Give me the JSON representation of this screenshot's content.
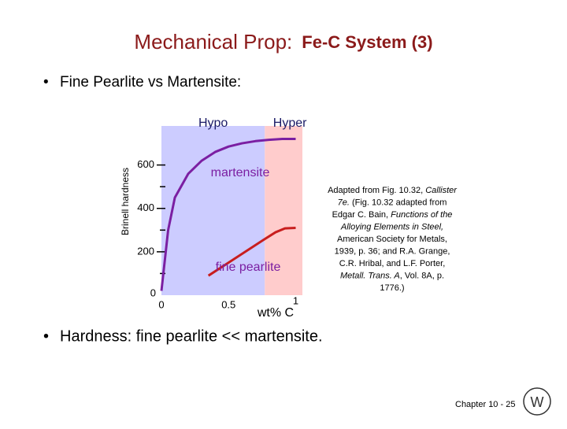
{
  "slide": {
    "title": {
      "main": "Mechanical Prop:",
      "sub": "Fe-C System (3)"
    },
    "bullets": [
      "Fine Pearlite vs Martensite:",
      "Hardness:  fine pearlite << martensite."
    ],
    "citation": [
      [
        {
          "text": "Adapted from Fig. 10.32, "
        },
        {
          "text": "Callister",
          "italic": true
        }
      ],
      [
        {
          "text": "7e.",
          "italic": true
        },
        {
          "text": "  (Fig. 10.32 adapted from"
        }
      ],
      [
        {
          "text": "Edgar C. Bain, "
        },
        {
          "text": "Functions of the",
          "italic": true
        }
      ],
      [
        {
          "text": "Alloying Elements in Steel,",
          "italic": true
        }
      ],
      [
        {
          "text": "American Society for Metals,"
        }
      ],
      [
        {
          "text": "1939, p. 36; and R.A. Grange,"
        }
      ],
      [
        {
          "text": "C.R. Hribal, and L.F. Porter,"
        }
      ],
      [
        {
          "text": "Metall. Trans. A",
          "italic": true
        },
        {
          "text": ", Vol. 8A, p."
        }
      ],
      [
        {
          "text": "1776.)"
        }
      ]
    ],
    "footer": "Chapter 10 - 25"
  },
  "chart_data": {
    "type": "line",
    "y_label": "Brinell hardness",
    "x_label": "wt% C",
    "xlim": [
      0,
      1.05
    ],
    "ylim": [
      0,
      780
    ],
    "xticks": [
      0,
      0.5,
      1
    ],
    "yticks": [
      0,
      200,
      400,
      600
    ],
    "minor_yticks": [
      100,
      300,
      500
    ],
    "regions": [
      {
        "name": "Hypo",
        "xlim": [
          0,
          0.77
        ],
        "color": "#ccccff"
      },
      {
        "name": "Hyper",
        "xlim": [
          0.77,
          1.05
        ],
        "color": "#ffcccc"
      }
    ],
    "series": [
      {
        "name": "martensite",
        "color": "#7b1fa2",
        "x": [
          0,
          0.05,
          0.1,
          0.2,
          0.3,
          0.4,
          0.5,
          0.6,
          0.7,
          0.8,
          0.9,
          1.0
        ],
        "values": [
          20,
          300,
          450,
          560,
          620,
          660,
          685,
          700,
          710,
          716,
          720,
          720
        ]
      },
      {
        "name": "fine pearlite",
        "color": "#c81e1e",
        "x": [
          0.35,
          0.5,
          0.76,
          0.85,
          0.92,
          1.0
        ],
        "values": [
          90,
          150,
          255,
          290,
          308,
          310
        ]
      }
    ]
  }
}
